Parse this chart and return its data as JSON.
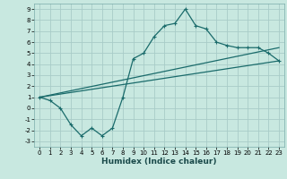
{
  "title": "",
  "xlabel": "Humidex (Indice chaleur)",
  "xlim": [
    -0.5,
    23.5
  ],
  "ylim": [
    -3.5,
    9.5
  ],
  "background_color": "#c8e8e0",
  "grid_color": "#a8ccc8",
  "line_color": "#1a6b6b",
  "line1_x": [
    0,
    1,
    2,
    3,
    4,
    5,
    6,
    7,
    8,
    9,
    10,
    11,
    12,
    13,
    14,
    15,
    16,
    17,
    18,
    19,
    20,
    21,
    22,
    23
  ],
  "line1_y": [
    1,
    0.7,
    0.0,
    -1.5,
    -2.5,
    -1.8,
    -2.5,
    -1.8,
    1.0,
    4.5,
    5.0,
    6.5,
    7.5,
    7.7,
    9.0,
    7.5,
    7.2,
    6.0,
    5.7,
    5.5,
    5.5,
    5.5,
    5.0,
    4.3
  ],
  "line2_x": [
    0,
    23
  ],
  "line2_y": [
    1.0,
    5.5
  ],
  "line3_x": [
    0,
    23
  ],
  "line3_y": [
    1.0,
    4.3
  ],
  "xticks": [
    0,
    1,
    2,
    3,
    4,
    5,
    6,
    7,
    8,
    9,
    10,
    11,
    12,
    13,
    14,
    15,
    16,
    17,
    18,
    19,
    20,
    21,
    22,
    23
  ],
  "yticks": [
    -3,
    -2,
    -1,
    0,
    1,
    2,
    3,
    4,
    5,
    6,
    7,
    8,
    9
  ],
  "tick_fontsize": 5.0,
  "xlabel_fontsize": 6.5
}
